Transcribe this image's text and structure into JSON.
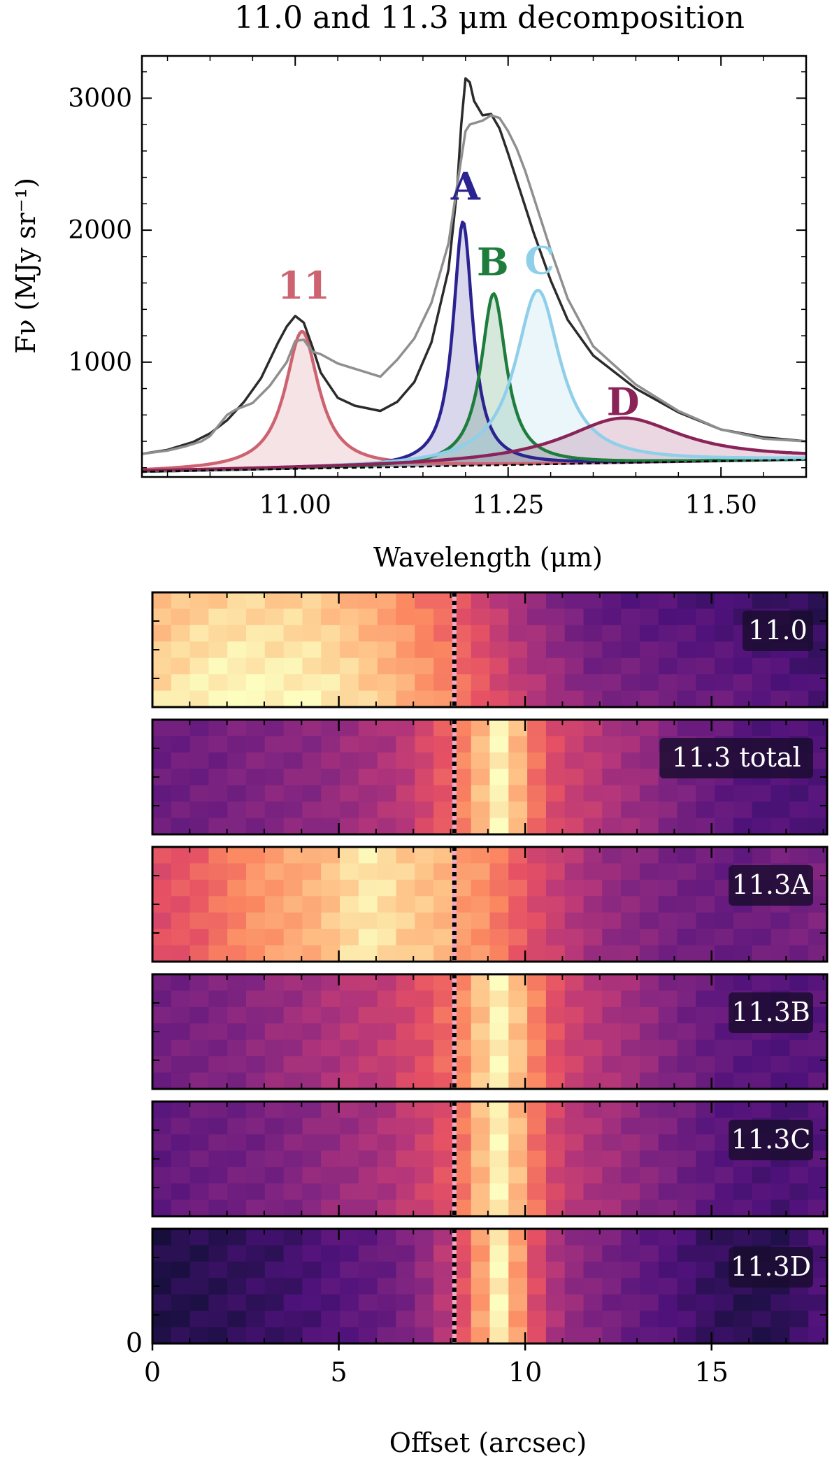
{
  "figure": {
    "title": "11.0 and 11.3 μm decomposition"
  },
  "chart_data": [
    {
      "type": "line",
      "panel": "spectrum",
      "title": "11.0 and 11.3 μm decomposition",
      "xlabel": "Wavelength (μm)",
      "ylabel": "Fν (MJy sr⁻¹)",
      "xlim": [
        10.82,
        11.6
      ],
      "ylim": [
        130,
        3320
      ],
      "xticks": [
        11.0,
        11.25,
        11.5
      ],
      "xtick_labels": [
        "11.00",
        "11.25",
        "11.50"
      ],
      "yticks": [
        1000,
        2000,
        3000
      ],
      "ytick_labels": [
        "1000",
        "2000",
        "3000"
      ],
      "grid": false,
      "colors": {
        "data_dark": "#2b2b2b",
        "data_gray": "#8f8f8f",
        "11": "#cd6370",
        "A": "#2b2391",
        "B": "#1e7d3d",
        "C": "#8fcfea",
        "D": "#8a2458",
        "continuum": "#000000"
      },
      "labels": [
        {
          "text": "11",
          "color": "#cd6370",
          "x": 11.01,
          "y": 1480
        },
        {
          "text": "A",
          "color": "#2b2391",
          "x": 11.2,
          "y": 2230
        },
        {
          "text": "B",
          "color": "#1e7d3d",
          "x": 11.232,
          "y": 1660
        },
        {
          "text": "C",
          "color": "#8fcfea",
          "x": 11.287,
          "y": 1670
        },
        {
          "text": "D",
          "color": "#8a2458",
          "x": 11.385,
          "y": 600
        }
      ],
      "continuum": {
        "name": "continuum",
        "x": [
          10.82,
          11.6
        ],
        "y": [
          170,
          262
        ]
      },
      "components": [
        {
          "name": "11",
          "center": 11.008,
          "hwhm": 0.024,
          "peak": 1040
        },
        {
          "name": "A",
          "center": 11.197,
          "hwhm": 0.014,
          "peak": 1850
        },
        {
          "name": "B",
          "center": 11.233,
          "hwhm": 0.018,
          "peak": 1300
        },
        {
          "name": "C",
          "center": 11.285,
          "hwhm": 0.032,
          "peak": 1320
        },
        {
          "name": "D",
          "center": 11.385,
          "hwhm": 0.085,
          "peak": 340
        }
      ],
      "series": [
        {
          "name": "data_dark",
          "x": [
            10.82,
            10.85,
            10.88,
            10.9,
            10.92,
            10.94,
            10.96,
            10.98,
            10.99,
            11.0,
            11.01,
            11.02,
            11.03,
            11.05,
            11.07,
            11.1,
            11.12,
            11.14,
            11.16,
            11.18,
            11.19,
            11.195,
            11.2,
            11.205,
            11.21,
            11.22,
            11.23,
            11.24,
            11.25,
            11.26,
            11.27,
            11.28,
            11.3,
            11.32,
            11.35,
            11.4,
            11.45,
            11.5,
            11.55,
            11.6
          ],
          "y": [
            305,
            335,
            395,
            460,
            560,
            700,
            880,
            1150,
            1270,
            1350,
            1300,
            1120,
            920,
            730,
            670,
            630,
            700,
            850,
            1150,
            1700,
            2300,
            2800,
            3150,
            3120,
            2980,
            2870,
            2880,
            2770,
            2580,
            2380,
            2180,
            1980,
            1620,
            1320,
            1050,
            800,
            620,
            490,
            430,
            400
          ]
        },
        {
          "name": "data_gray",
          "x": [
            10.82,
            10.85,
            10.87,
            10.89,
            10.9,
            10.91,
            10.92,
            10.93,
            10.95,
            10.97,
            10.99,
            11.0,
            11.01,
            11.02,
            11.03,
            11.05,
            11.07,
            11.09,
            11.1,
            11.12,
            11.14,
            11.16,
            11.18,
            11.19,
            11.2,
            11.205,
            11.21,
            11.22,
            11.23,
            11.24,
            11.25,
            11.26,
            11.27,
            11.28,
            11.3,
            11.32,
            11.35,
            11.4,
            11.45,
            11.5,
            11.55,
            11.6
          ],
          "y": [
            305,
            330,
            360,
            400,
            440,
            520,
            600,
            640,
            690,
            820,
            1000,
            1160,
            1170,
            1080,
            1060,
            990,
            950,
            910,
            890,
            1020,
            1180,
            1450,
            1900,
            2330,
            2750,
            2800,
            2810,
            2830,
            2870,
            2850,
            2750,
            2620,
            2450,
            2250,
            1850,
            1480,
            1120,
            830,
            630,
            490,
            420,
            400
          ]
        }
      ]
    },
    {
      "type": "heatmap",
      "panel": "maps",
      "xlabel": "Offset (arcsec)",
      "xlim": [
        0,
        18.1
      ],
      "xticks": [
        0,
        5,
        10,
        15
      ],
      "xtick_labels": [
        "0",
        "5",
        "10",
        "15"
      ],
      "ytick_labels": [
        "0"
      ],
      "colormap": "magma",
      "marker_offset": 8.1,
      "panels": [
        {
          "label": "11.0",
          "profile": [
            0.9,
            0.92,
            0.94,
            0.95,
            0.96,
            0.96,
            0.95,
            0.95,
            0.94,
            0.92,
            0.9,
            0.87,
            0.84,
            0.8,
            0.76,
            0.72,
            0.67,
            0.62,
            0.56,
            0.5,
            0.46,
            0.42,
            0.38,
            0.34,
            0.33,
            0.32,
            0.31,
            0.3,
            0.29,
            0.28,
            0.27,
            0.26,
            0.25,
            0.24,
            0.22,
            0.2
          ],
          "grad": 0.1
        },
        {
          "label": "11.3 total",
          "profile": [
            0.32,
            0.33,
            0.34,
            0.35,
            0.36,
            0.37,
            0.38,
            0.39,
            0.4,
            0.42,
            0.44,
            0.46,
            0.48,
            0.52,
            0.58,
            0.64,
            0.74,
            0.86,
            0.98,
            0.86,
            0.7,
            0.6,
            0.55,
            0.52,
            0.48,
            0.45,
            0.42,
            0.38,
            0.35,
            0.32,
            0.3,
            0.28,
            0.26,
            0.25,
            0.25,
            0.26
          ],
          "grad": 0.0
        },
        {
          "label": "11.3A",
          "profile": [
            0.62,
            0.64,
            0.66,
            0.7,
            0.74,
            0.78,
            0.8,
            0.82,
            0.84,
            0.88,
            0.93,
            0.96,
            0.94,
            0.9,
            0.88,
            0.86,
            0.8,
            0.78,
            0.72,
            0.66,
            0.6,
            0.55,
            0.5,
            0.46,
            0.42,
            0.4,
            0.38,
            0.36,
            0.34,
            0.33,
            0.32,
            0.32,
            0.33,
            0.34,
            0.35,
            0.36
          ],
          "grad": 0.0
        },
        {
          "label": "11.3B",
          "profile": [
            0.34,
            0.35,
            0.36,
            0.37,
            0.38,
            0.4,
            0.42,
            0.44,
            0.46,
            0.48,
            0.5,
            0.52,
            0.54,
            0.58,
            0.62,
            0.68,
            0.76,
            0.88,
            0.98,
            0.88,
            0.74,
            0.62,
            0.56,
            0.52,
            0.48,
            0.45,
            0.42,
            0.38,
            0.35,
            0.32,
            0.3,
            0.28,
            0.27,
            0.26,
            0.27,
            0.28
          ],
          "grad": 0.0
        },
        {
          "label": "11.3C",
          "profile": [
            0.3,
            0.31,
            0.32,
            0.33,
            0.34,
            0.35,
            0.36,
            0.38,
            0.4,
            0.42,
            0.44,
            0.46,
            0.48,
            0.52,
            0.56,
            0.62,
            0.72,
            0.86,
            0.98,
            0.86,
            0.7,
            0.58,
            0.52,
            0.48,
            0.45,
            0.42,
            0.39,
            0.36,
            0.33,
            0.3,
            0.28,
            0.26,
            0.25,
            0.24,
            0.25,
            0.26
          ],
          "grad": 0.0
        },
        {
          "label": "11.3D",
          "profile": [
            0.14,
            0.15,
            0.16,
            0.17,
            0.18,
            0.19,
            0.2,
            0.22,
            0.24,
            0.26,
            0.28,
            0.3,
            0.32,
            0.36,
            0.42,
            0.5,
            0.62,
            0.8,
            0.98,
            0.8,
            0.6,
            0.48,
            0.42,
            0.38,
            0.35,
            0.32,
            0.29,
            0.26,
            0.23,
            0.2,
            0.18,
            0.16,
            0.16,
            0.17,
            0.2,
            0.24
          ],
          "grad": 0.0
        }
      ]
    }
  ]
}
